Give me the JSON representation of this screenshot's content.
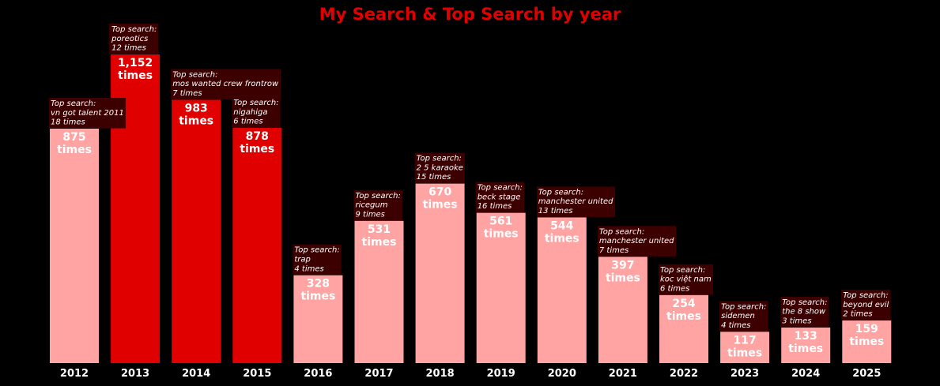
{
  "chart_data": {
    "type": "bar",
    "title": "My Search & Top Search by year",
    "xlabel": "",
    "ylabel": "",
    "ylim": [
      0,
      1300
    ],
    "grid": false,
    "value_suffix": "times",
    "annotation_prefix": "Top search:",
    "colors": {
      "background": "#000000",
      "title": "#e00000",
      "highlight_bar": "#e00000",
      "normal_bar": "#ffa3a3",
      "value_label": "#ffffff",
      "annotation_box": "#3d0000",
      "annotation_text": "#ffffff",
      "tick_label": "#ffffff"
    },
    "categories": [
      "2012",
      "2013",
      "2014",
      "2015",
      "2016",
      "2017",
      "2018",
      "2019",
      "2020",
      "2021",
      "2022",
      "2023",
      "2024",
      "2025"
    ],
    "values": [
      875,
      1152,
      983,
      878,
      328,
      531,
      670,
      561,
      544,
      397,
      254,
      117,
      133,
      159
    ],
    "value_labels": [
      "875",
      "1,152",
      "983",
      "878",
      "328",
      "531",
      "670",
      "561",
      "544",
      "397",
      "254",
      "117",
      "133",
      "159"
    ],
    "highlighted": [
      false,
      true,
      true,
      true,
      false,
      false,
      false,
      false,
      false,
      false,
      false,
      false,
      false,
      false
    ],
    "top_searches": [
      {
        "term": "vn got talent 2011",
        "count_label": "18 times"
      },
      {
        "term": "poreotics",
        "count_label": "12 times"
      },
      {
        "term": "mos wanted crew frontrow",
        "count_label": "7 times"
      },
      {
        "term": "nigahiga",
        "count_label": "6 times"
      },
      {
        "term": "trap",
        "count_label": "4 times"
      },
      {
        "term": "ricegum",
        "count_label": "9 times"
      },
      {
        "term": "2 5 karaoke",
        "count_label": "15 times"
      },
      {
        "term": "beck stage",
        "count_label": "16 times"
      },
      {
        "term": "manchester united",
        "count_label": "13 times"
      },
      {
        "term": "manchester united",
        "count_label": "7 times"
      },
      {
        "term": "koc việt nam",
        "count_label": "6 times"
      },
      {
        "term": "sidemen",
        "count_label": "4 times"
      },
      {
        "term": "the 8 show",
        "count_label": "3 times"
      },
      {
        "term": "beyond evil",
        "count_label": "2 times"
      }
    ]
  }
}
